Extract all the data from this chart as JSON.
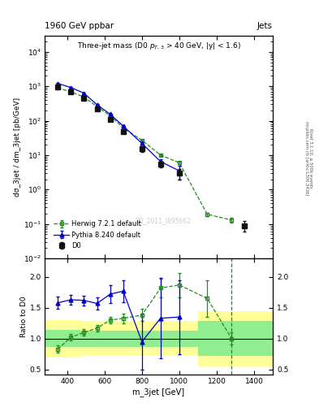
{
  "title_top": "1960 GeV ppbar",
  "title_top_right": "Jets",
  "plot_title": "Three-jet mass (D0 p_{T,3} > 40 GeV, |y| < 1.6)",
  "xlabel": "m_3jet [GeV]",
  "ylabel_main": "dσ_3jet / dm_3jet [pb/GeV]",
  "ylabel_ratio": "Ratio to D0",
  "watermark": "D0_2011_I895662",
  "right_label_top": "Rivet 3.1.10, ≥ 500k events",
  "right_label_bot": "mcplots.cern.ch [arXiv:1306.3436]",
  "d0_x": [
    350,
    420,
    490,
    560,
    630,
    700,
    800,
    900,
    1000,
    1350
  ],
  "d0_y": [
    950,
    680,
    450,
    220,
    110,
    48,
    15,
    5.5,
    3.0,
    0.09
  ],
  "d0_yerr_lo": [
    60,
    45,
    30,
    18,
    12,
    6,
    2.5,
    1.2,
    1.0,
    0.03
  ],
  "d0_yerr_hi": [
    60,
    45,
    30,
    18,
    12,
    6,
    2.5,
    1.2,
    1.0,
    0.03
  ],
  "herwig_x": [
    350,
    420,
    490,
    560,
    630,
    700,
    800,
    900,
    1000,
    1150,
    1280
  ],
  "herwig_y": [
    900,
    680,
    490,
    255,
    140,
    62,
    27,
    10,
    6.0,
    0.19,
    0.13
  ],
  "herwig_yerr_lo": [
    15,
    12,
    10,
    7,
    5,
    3,
    1.5,
    0.7,
    0.5,
    0.02,
    0.02
  ],
  "herwig_yerr_hi": [
    15,
    12,
    10,
    7,
    5,
    3,
    1.5,
    0.7,
    0.5,
    0.02,
    0.02
  ],
  "pythia_x": [
    350,
    420,
    490,
    560,
    630,
    700,
    800,
    900,
    1000
  ],
  "pythia_y": [
    1200,
    920,
    630,
    290,
    155,
    70,
    22,
    6.5,
    3.5
  ],
  "pythia_yerr_lo": [
    25,
    20,
    15,
    10,
    8,
    5,
    2,
    1.0,
    1.5
  ],
  "pythia_yerr_hi": [
    25,
    20,
    15,
    10,
    8,
    5,
    2,
    1.0,
    1.5
  ],
  "herwig_ratio_x": [
    350,
    420,
    490,
    560,
    630,
    700,
    800,
    900,
    1000,
    1150,
    1280
  ],
  "herwig_ratio_y": [
    0.83,
    1.02,
    1.1,
    1.17,
    1.3,
    1.33,
    1.38,
    1.82,
    1.87,
    1.65,
    1.0
  ],
  "herwig_ratio_yerr_lo": [
    0.06,
    0.05,
    0.05,
    0.05,
    0.05,
    0.08,
    0.1,
    0.15,
    0.2,
    0.3,
    0.1
  ],
  "herwig_ratio_yerr_hi": [
    0.06,
    0.05,
    0.05,
    0.05,
    0.05,
    0.08,
    0.1,
    0.15,
    0.2,
    0.3,
    0.1
  ],
  "pythia_ratio_x": [
    350,
    420,
    490,
    560,
    630,
    700,
    800,
    900,
    1000
  ],
  "pythia_ratio_y": [
    1.58,
    1.63,
    1.62,
    1.57,
    1.72,
    1.77,
    0.95,
    1.33,
    1.35
  ],
  "pythia_ratio_yerr_lo": [
    0.1,
    0.08,
    0.08,
    0.1,
    0.14,
    0.18,
    0.45,
    0.65,
    0.6
  ],
  "pythia_ratio_yerr_hi": [
    0.1,
    0.08,
    0.08,
    0.1,
    0.14,
    0.18,
    0.45,
    0.65,
    0.6
  ],
  "herwig_vline_x": 1280,
  "band_x_edges": [
    280,
    470,
    650,
    850,
    1100,
    1500
  ],
  "band_yellow_lo": [
    0.7,
    0.72,
    0.72,
    0.72,
    0.55,
    0.55
  ],
  "band_yellow_hi": [
    1.3,
    1.28,
    1.28,
    1.28,
    1.45,
    1.45
  ],
  "band_green_lo": [
    0.86,
    0.87,
    0.87,
    0.87,
    0.72,
    0.72
  ],
  "band_green_hi": [
    1.14,
    1.13,
    1.13,
    1.13,
    1.28,
    1.28
  ],
  "d0_color": "#111111",
  "herwig_color": "#228B22",
  "pythia_color": "#0000CC",
  "yellow_color": "#FFFF99",
  "green_color": "#90EE90",
  "xlim": [
    280,
    1500
  ],
  "ylim_main": [
    0.01,
    30000
  ],
  "ylim_ratio": [
    0.42,
    2.3
  ],
  "fig_width": 3.93,
  "fig_height": 5.12,
  "dpi": 100
}
